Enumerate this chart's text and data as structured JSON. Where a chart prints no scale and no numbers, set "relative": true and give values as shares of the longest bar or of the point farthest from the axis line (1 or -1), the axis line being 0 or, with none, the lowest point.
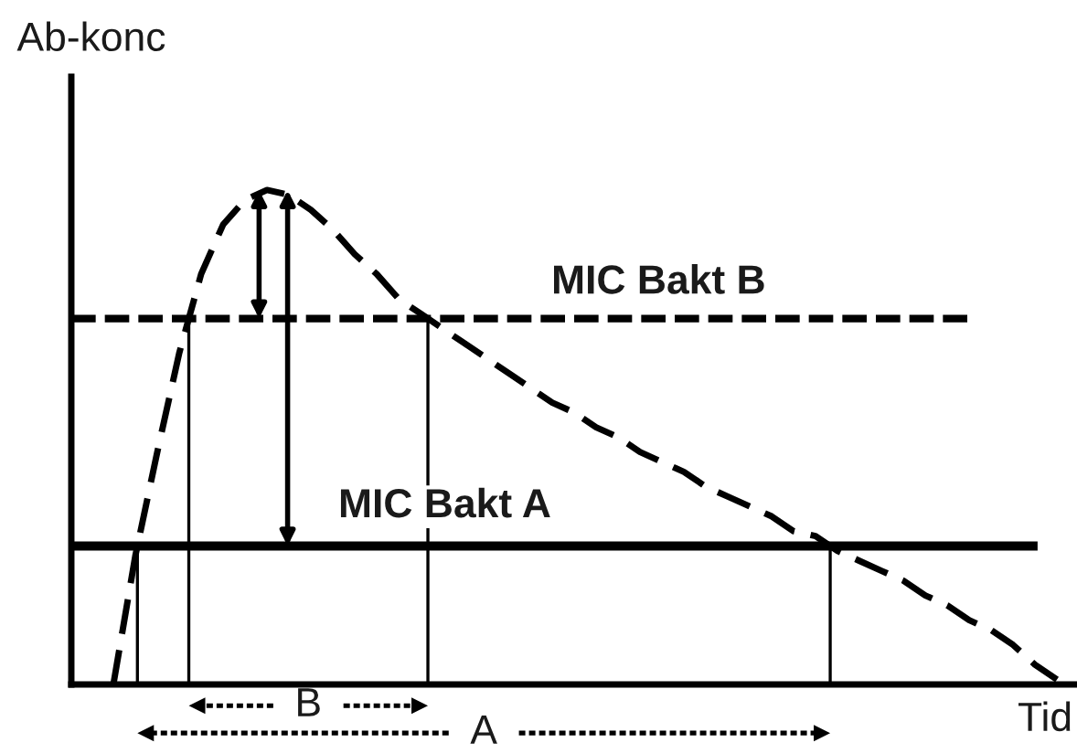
{
  "chart_data": {
    "type": "line",
    "relative": true,
    "xlabel": "Tid",
    "ylabel": "Ab-konc",
    "categories": [
      null,
      null,
      null,
      null,
      null,
      null,
      null,
      null,
      null,
      null,
      null,
      null,
      null,
      null,
      null,
      null,
      null,
      null,
      null,
      null,
      null,
      null,
      null,
      null,
      null,
      null,
      null,
      null,
      null,
      null,
      null,
      null,
      null,
      null,
      null,
      null,
      null,
      null,
      null,
      null,
      null,
      null,
      null,
      null
    ],
    "values": [
      0.0,
      0.26,
      0.47,
      0.67,
      0.83,
      0.93,
      0.98,
      1.0,
      0.99,
      0.96,
      0.92,
      0.87,
      0.83,
      0.78,
      0.75,
      0.72,
      0.69,
      0.66,
      0.63,
      0.6,
      0.57,
      0.55,
      0.52,
      0.5,
      0.47,
      0.45,
      0.43,
      0.4,
      0.38,
      0.36,
      0.34,
      0.31,
      0.3,
      0.27,
      0.25,
      0.23,
      0.21,
      0.18,
      0.16,
      0.13,
      0.11,
      0.08,
      0.04,
      0.01
    ],
    "color": "#000000",
    "line_style": "dashed",
    "ref_lines": [
      {
        "axis": "y",
        "value": 0.74,
        "label": "MIC Bakt B",
        "color": "#000000",
        "line_style": "dashed"
      },
      {
        "axis": "y",
        "value": 0.28,
        "label": "MIC Bakt A",
        "color": "#000000",
        "line_style": "solid"
      }
    ],
    "annotations": [
      "B",
      "A"
    ]
  }
}
